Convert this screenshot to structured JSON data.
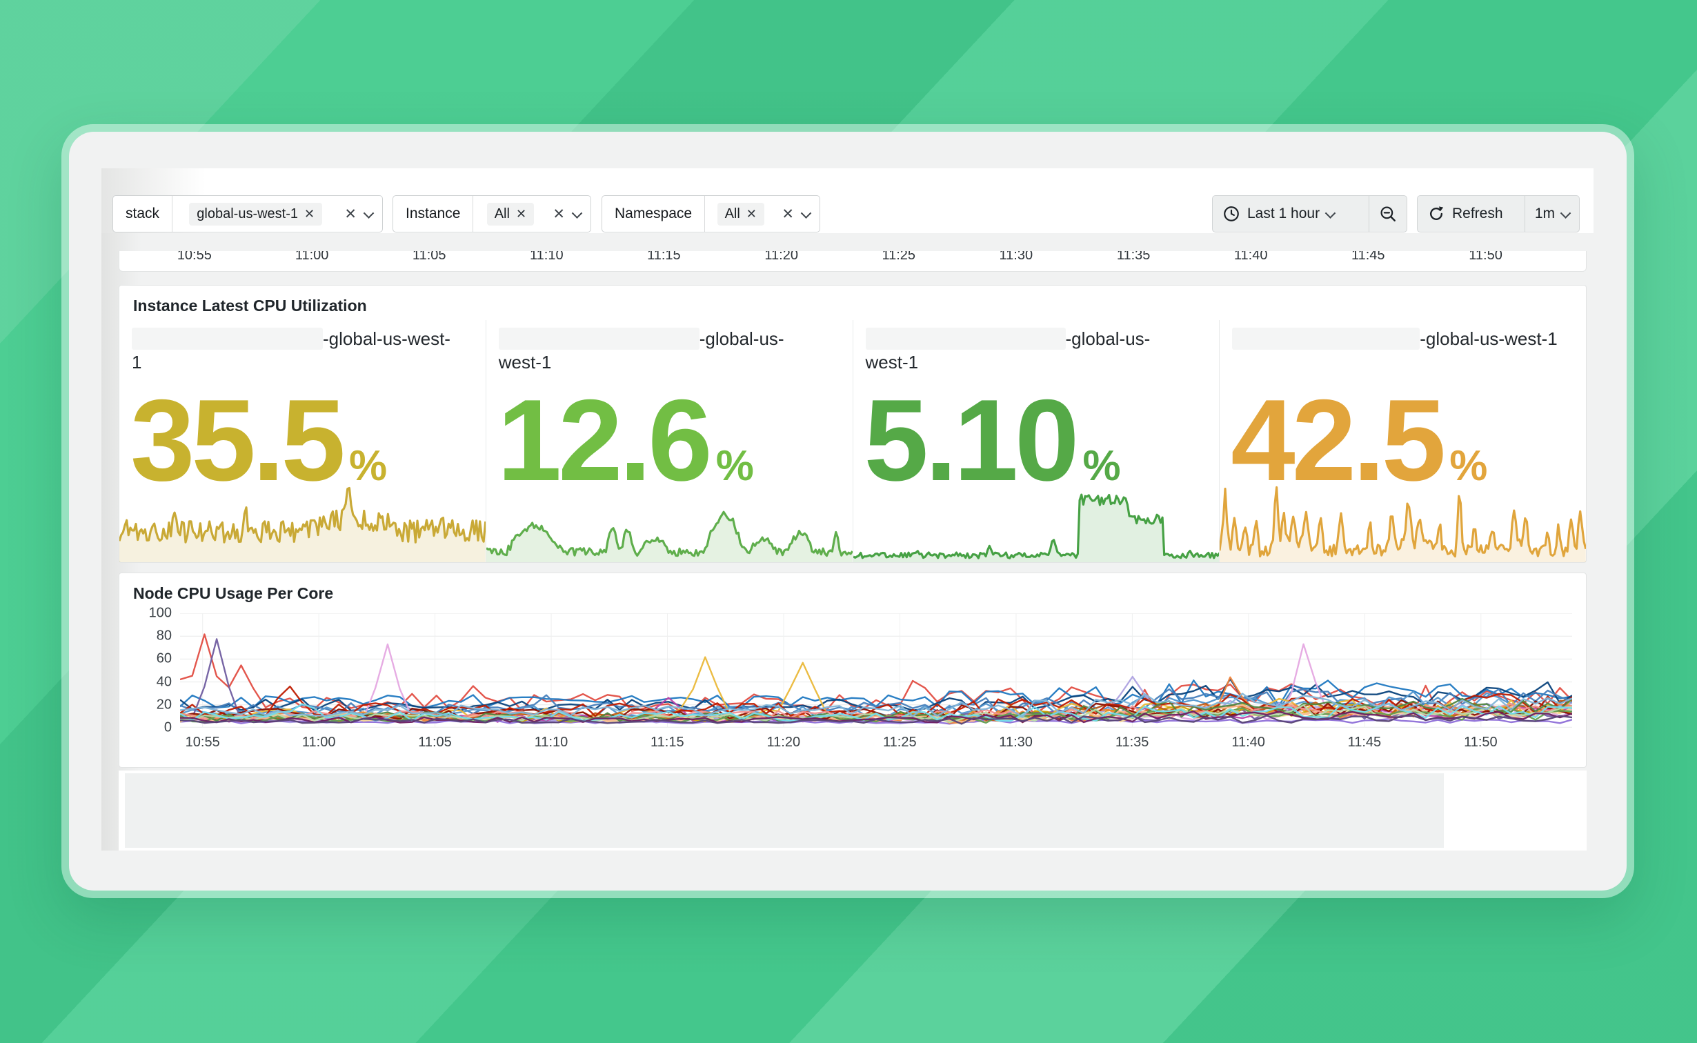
{
  "theme": {
    "background_green": "#47CC90",
    "card_bg": "#F1F2F2",
    "panel_bg": "#FFFFFF",
    "panel_border": "#E2E4E4"
  },
  "icons": {
    "close": "✕",
    "clock": "clock-icon",
    "zoom_out": "zoom-out-icon",
    "refresh": "refresh-icon"
  },
  "filters": {
    "groups": [
      {
        "label": "stack",
        "value": "global-us-west-1"
      },
      {
        "label": "Instance",
        "value": "All"
      },
      {
        "label": "Namespace",
        "value": "All"
      }
    ]
  },
  "time_controls": {
    "range_label": "Last 1 hour",
    "refresh_label": "Refresh",
    "interval": "1m"
  },
  "time_axis": [
    "10:55",
    "11:00",
    "11:05",
    "11:10",
    "11:15",
    "11:20",
    "11:25",
    "11:30",
    "11:35",
    "11:40",
    "11:45",
    "11:50"
  ],
  "instance_panel": {
    "title": "Instance Latest CPU Utilization",
    "stats": [
      {
        "name_part1": "-global-us-west-",
        "name_part2": "1",
        "value": "35.5",
        "unit": "%",
        "color": "#C8B22F",
        "spark": {
          "color": "#C9A936",
          "base": 0.38,
          "noise": 0.15,
          "features": [
            {
              "t": "hill",
              "a": 0.5,
              "b": 0.78,
              "h": 0.16
            },
            {
              "t": "spike",
              "at": 0.625,
              "h": 0.4,
              "w": 0.015
            },
            {
              "t": "spike",
              "at": 0.345,
              "h": 0.26,
              "w": 0.012
            },
            {
              "t": "spike",
              "at": 0.155,
              "h": 0.18,
              "w": 0.012
            },
            {
              "t": "spike",
              "at": 0.88,
              "h": 0.16,
              "w": 0.012
            }
          ]
        }
      },
      {
        "name_part1": "-global-us-",
        "name_part2": "west-1",
        "value": "12.6",
        "unit": "%",
        "color": "#72BE44",
        "spark": {
          "color": "#5FAE4C",
          "base": 0.1,
          "noise": 0.055,
          "features": [
            {
              "t": "hill",
              "a": 0.055,
              "b": 0.21,
              "h": 0.34
            },
            {
              "t": "spike",
              "at": 0.345,
              "h": 0.4,
              "w": 0.02
            },
            {
              "t": "spike",
              "at": 0.385,
              "h": 0.36,
              "w": 0.018
            },
            {
              "t": "hill",
              "a": 0.42,
              "b": 0.5,
              "h": 0.18
            },
            {
              "t": "hill",
              "a": 0.595,
              "b": 0.705,
              "h": 0.5
            },
            {
              "t": "hill",
              "a": 0.72,
              "b": 0.79,
              "h": 0.18
            },
            {
              "t": "hill",
              "a": 0.82,
              "b": 0.895,
              "h": 0.26
            },
            {
              "t": "spike",
              "at": 0.955,
              "h": 0.32,
              "w": 0.012
            }
          ]
        }
      },
      {
        "name_part1": "-global-us-",
        "name_part2": "west-1",
        "value": "5.10",
        "unit": "%",
        "color": "#55A947",
        "spark": {
          "color": "#46A144",
          "base": 0.055,
          "noise": 0.038,
          "features": [
            {
              "t": "spike",
              "at": 0.175,
              "h": 0.1,
              "w": 0.01
            },
            {
              "t": "spike",
              "at": 0.37,
              "h": 0.14,
              "w": 0.01
            },
            {
              "t": "spike",
              "at": 0.545,
              "h": 0.24,
              "w": 0.014
            },
            {
              "t": "plateau",
              "a": 0.615,
              "b": 0.75,
              "h": 0.8,
              "nz": 0.07
            },
            {
              "t": "plateau",
              "a": 0.75,
              "b": 0.845,
              "h": 0.54,
              "nz": 0.06
            },
            {
              "t": "spike",
              "at": 0.92,
              "h": 0.1,
              "w": 0.01
            }
          ]
        }
      },
      {
        "name_part1": "-global-us-west-1",
        "name_part2": "",
        "value": "42.5",
        "unit": "%",
        "color": "#E2A53C",
        "spark": {
          "color": "#E0A53C",
          "base": 0.12,
          "noise": 0.08,
          "features": [
            {
              "t": "hill",
              "a": 0.13,
              "b": 0.27,
              "h": 0.12
            },
            {
              "t": "hill",
              "a": 0.45,
              "b": 0.6,
              "h": 0.1
            },
            {
              "t": "hill",
              "a": 0.78,
              "b": 0.86,
              "h": 0.08
            },
            {
              "t": "spike",
              "at": 0.015,
              "h": 0.78,
              "w": 0.012
            },
            {
              "t": "spike",
              "at": 0.04,
              "h": 0.52,
              "w": 0.01
            },
            {
              "t": "spike",
              "at": 0.07,
              "h": 0.4,
              "w": 0.01
            },
            {
              "t": "spike",
              "at": 0.1,
              "h": 0.42,
              "w": 0.01
            },
            {
              "t": "spike",
              "at": 0.155,
              "h": 0.86,
              "w": 0.01
            },
            {
              "t": "spike",
              "at": 0.175,
              "h": 0.4,
              "w": 0.01
            },
            {
              "t": "spike",
              "at": 0.2,
              "h": 0.44,
              "w": 0.01
            },
            {
              "t": "spike",
              "at": 0.235,
              "h": 0.46,
              "w": 0.01
            },
            {
              "t": "spike",
              "at": 0.275,
              "h": 0.42,
              "w": 0.01
            },
            {
              "t": "spike",
              "at": 0.33,
              "h": 0.56,
              "w": 0.012
            },
            {
              "t": "spike",
              "at": 0.41,
              "h": 0.44,
              "w": 0.01
            },
            {
              "t": "spike",
              "at": 0.47,
              "h": 0.52,
              "w": 0.01
            },
            {
              "t": "spike",
              "at": 0.515,
              "h": 0.62,
              "w": 0.012
            },
            {
              "t": "spike",
              "at": 0.545,
              "h": 0.46,
              "w": 0.01
            },
            {
              "t": "spike",
              "at": 0.6,
              "h": 0.4,
              "w": 0.01
            },
            {
              "t": "spike",
              "at": 0.655,
              "h": 0.96,
              "w": 0.01
            },
            {
              "t": "spike",
              "at": 0.695,
              "h": 0.34,
              "w": 0.01
            },
            {
              "t": "spike",
              "at": 0.745,
              "h": 0.3,
              "w": 0.01
            },
            {
              "t": "spike",
              "at": 0.805,
              "h": 0.52,
              "w": 0.012
            },
            {
              "t": "spike",
              "at": 0.835,
              "h": 0.44,
              "w": 0.01
            },
            {
              "t": "spike",
              "at": 0.895,
              "h": 0.32,
              "w": 0.01
            },
            {
              "t": "spike",
              "at": 0.925,
              "h": 0.3,
              "w": 0.01
            },
            {
              "t": "spike",
              "at": 0.96,
              "h": 0.48,
              "w": 0.01
            },
            {
              "t": "spike",
              "at": 0.985,
              "h": 0.56,
              "w": 0.012
            }
          ]
        }
      }
    ]
  },
  "node_panel": {
    "title": "Node CPU Usage Per Core",
    "type": "line",
    "ylim": [
      0,
      100
    ],
    "y_ticks": [
      "100",
      "80",
      "60",
      "40",
      "20",
      "0"
    ],
    "n_points": 115,
    "series": [
      {
        "c": "#E24D42",
        "b": 22,
        "n": 8,
        "l": 4,
        "s": [
          [
            0,
            28
          ],
          [
            2,
            52
          ],
          [
            5,
            34
          ],
          [
            24,
            20
          ],
          [
            60,
            16
          ]
        ]
      },
      {
        "c": "#1F78C1",
        "b": 23,
        "n": 6,
        "l": 9,
        "s": []
      },
      {
        "c": "#0A437C",
        "b": 20,
        "n": 5,
        "l": 11,
        "s": []
      },
      {
        "c": "#447EBC",
        "b": 17,
        "n": 5,
        "l": 9,
        "s": [
          [
            30,
            12
          ]
        ]
      },
      {
        "c": "#5195CE",
        "b": 14,
        "n": 5,
        "l": 8,
        "s": []
      },
      {
        "c": "#705DA0",
        "b": 9,
        "n": 3,
        "l": 3,
        "s": [
          [
            3,
            66
          ]
        ]
      },
      {
        "c": "#E5A8E2",
        "b": 8,
        "n": 3,
        "l": 4,
        "s": [
          [
            17,
            66
          ],
          [
            92,
            62
          ]
        ]
      },
      {
        "c": "#BA43A9",
        "b": 8,
        "n": 3,
        "l": 6,
        "s": [
          [
            40,
            18
          ]
        ]
      },
      {
        "c": "#AEA2E0",
        "b": 7,
        "n": 2.5,
        "l": 10,
        "s": [
          [
            78,
            32
          ]
        ]
      },
      {
        "c": "#8E6FD8",
        "b": 5,
        "n": 1.2,
        "l": 1,
        "s": []
      },
      {
        "c": "#EAB839",
        "b": 12,
        "n": 5,
        "l": 5,
        "s": [
          [
            43,
            54
          ],
          [
            51,
            48
          ]
        ]
      },
      {
        "c": "#CCA300",
        "b": 9,
        "n": 4,
        "l": 6,
        "s": []
      },
      {
        "c": "#F4D598",
        "b": 8,
        "n": 3,
        "l": 4,
        "s": []
      },
      {
        "c": "#EF843C",
        "b": 10,
        "n": 4,
        "l": 5,
        "s": [
          [
            86,
            24
          ]
        ]
      },
      {
        "c": "#C15C17",
        "b": 10,
        "n": 4,
        "l": 7,
        "s": []
      },
      {
        "c": "#F9BA8F",
        "b": 9,
        "n": 3.5,
        "l": 6,
        "s": []
      },
      {
        "c": "#890F02",
        "b": 12,
        "n": 5,
        "l": 4,
        "s": []
      },
      {
        "c": "#BF1B00",
        "b": 16,
        "n": 6,
        "l": 5,
        "s": [
          [
            9,
            18
          ]
        ]
      },
      {
        "c": "#F29191",
        "b": 11,
        "n": 4,
        "l": 5,
        "s": []
      },
      {
        "c": "#508642",
        "b": 10,
        "n": 4,
        "l": 8,
        "s": []
      },
      {
        "c": "#629E51",
        "b": 8,
        "n": 3,
        "l": 4,
        "s": []
      },
      {
        "c": "#B7DBAB",
        "b": 9,
        "n": 3,
        "l": 5,
        "s": []
      },
      {
        "c": "#70DBED",
        "b": 10,
        "n": 4,
        "l": 5,
        "s": [
          [
            10,
            13
          ]
        ]
      },
      {
        "c": "#82B5D8",
        "b": 15,
        "n": 5,
        "l": 7,
        "s": []
      },
      {
        "c": "#6D1F62",
        "b": 7,
        "n": 2.5,
        "l": 3,
        "s": []
      },
      {
        "c": "#584477",
        "b": 6,
        "n": 2,
        "l": 2,
        "s": []
      }
    ]
  }
}
